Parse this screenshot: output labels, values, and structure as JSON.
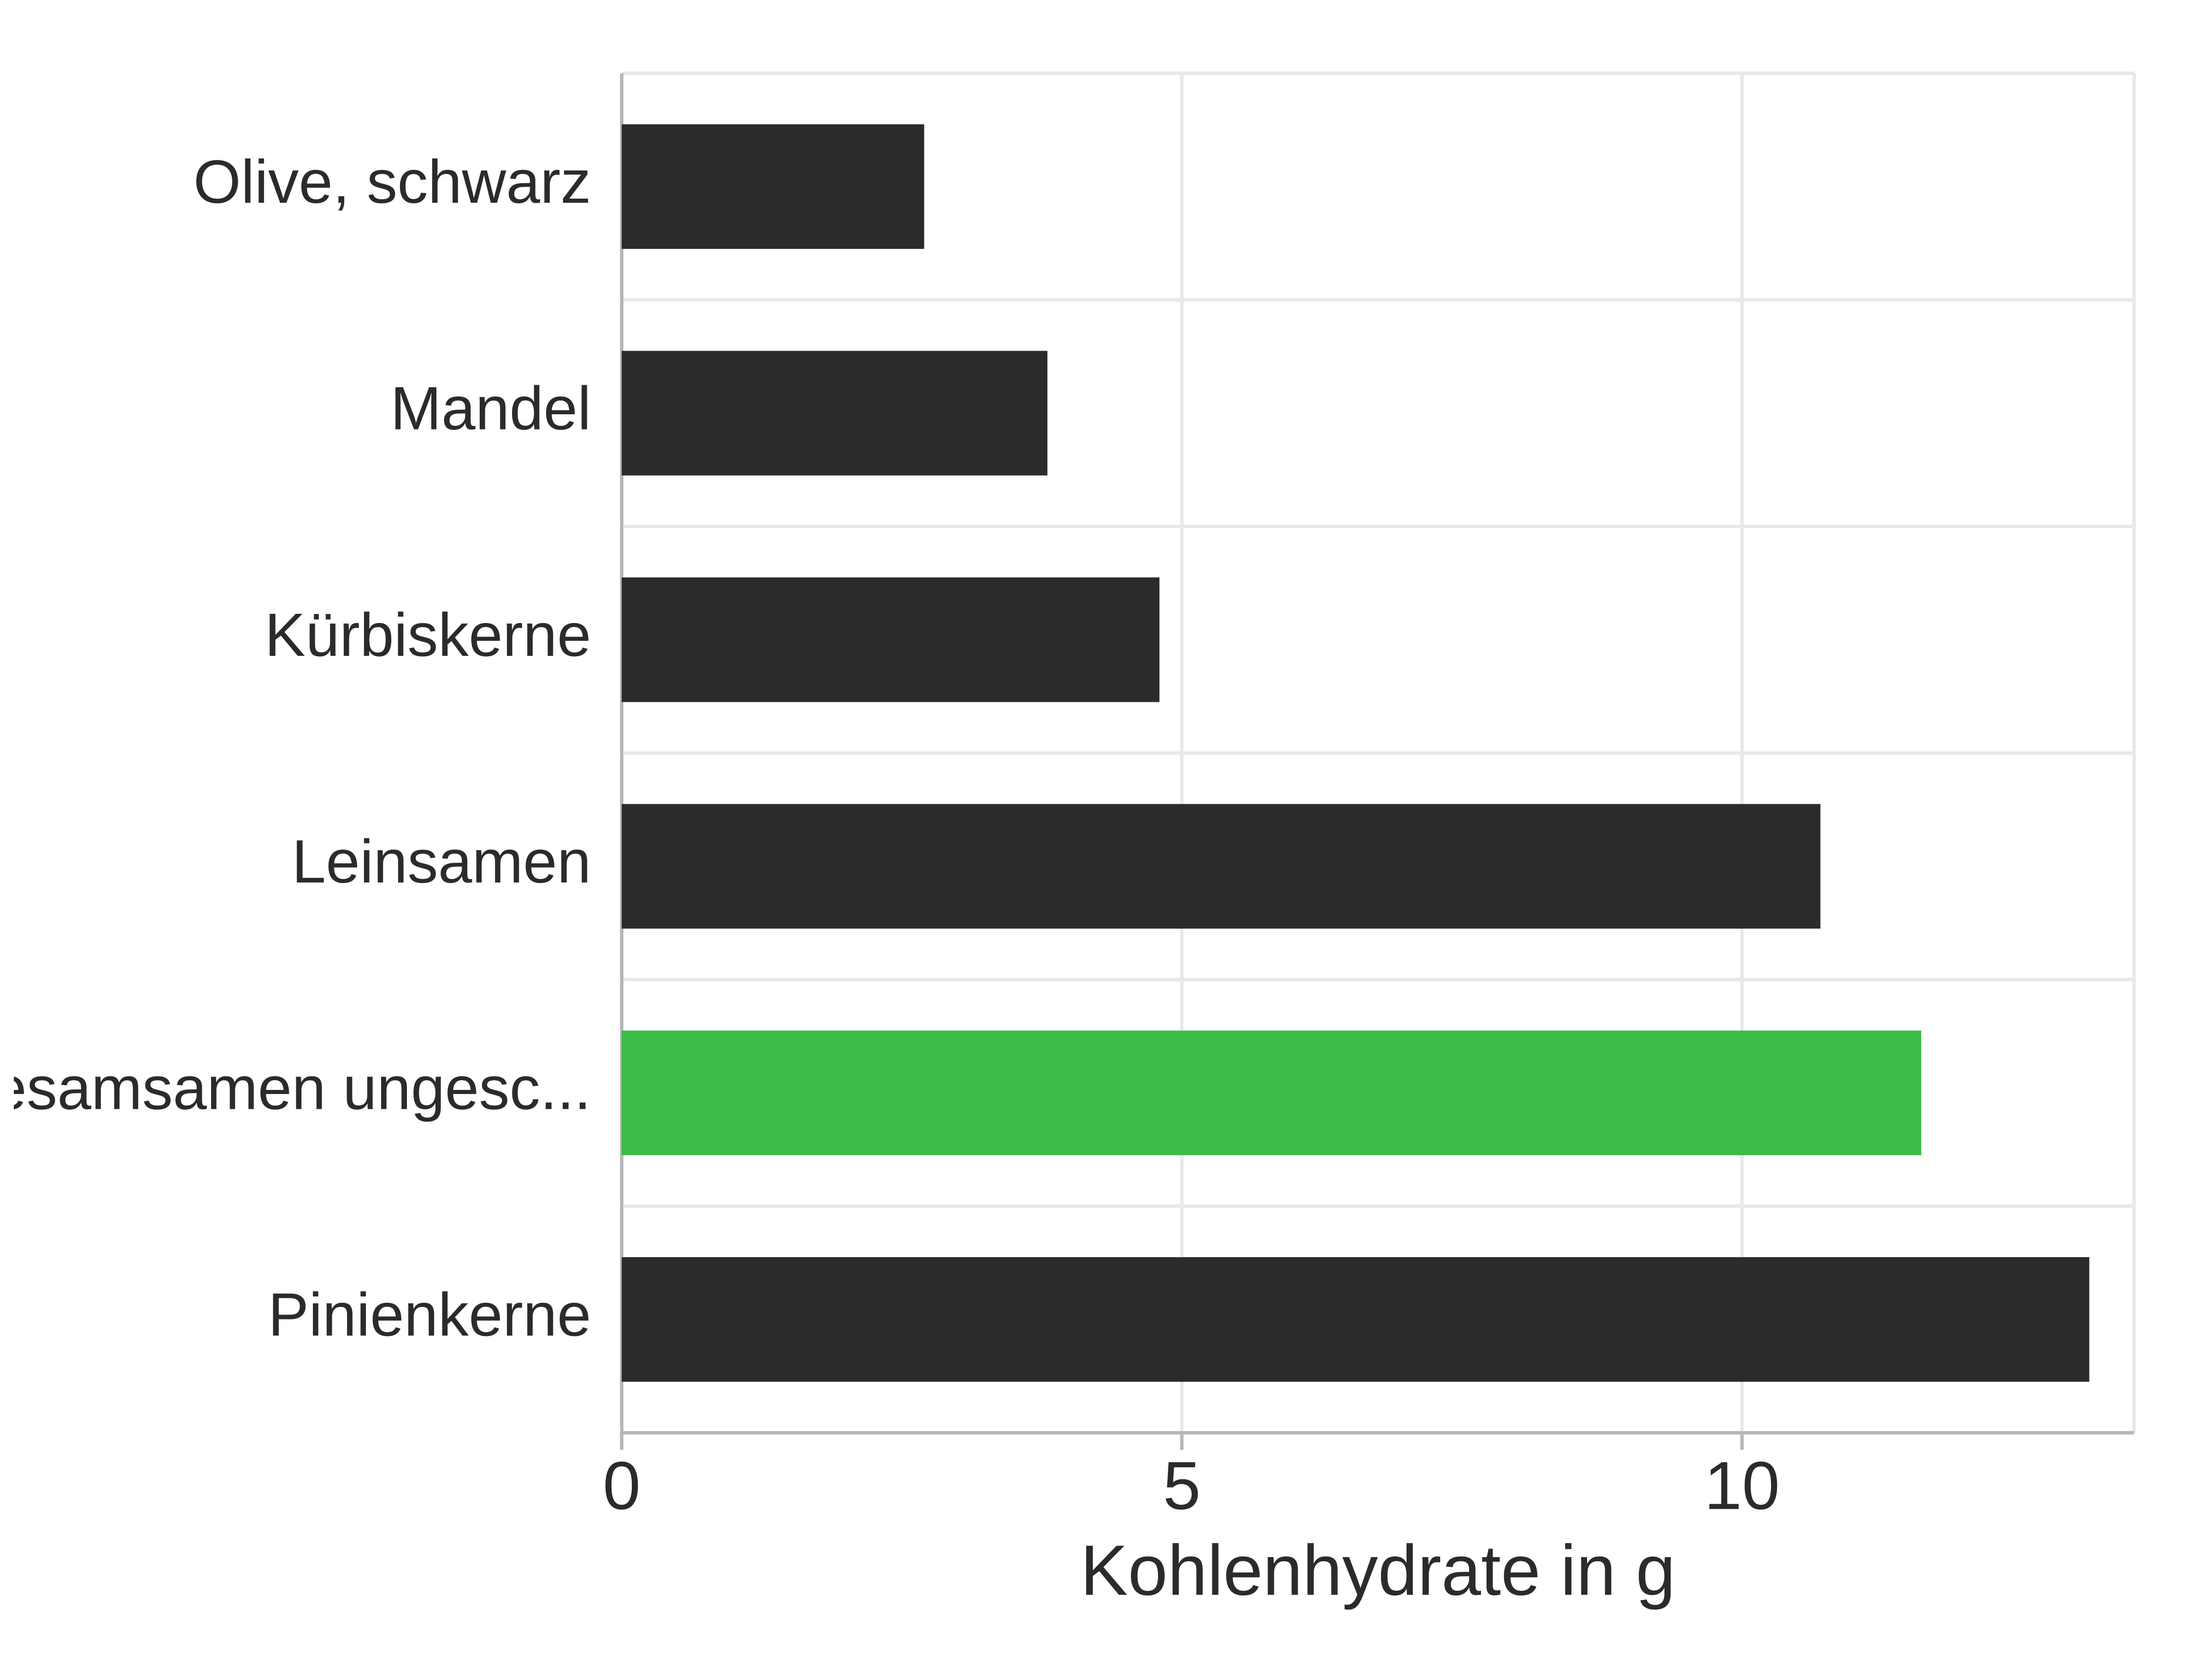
{
  "chart": {
    "type": "bar-horizontal",
    "categories": [
      "Olive, schwarz",
      "Mandel",
      "Kürbiskerne",
      "Leinsamen",
      "Sesamsamen ungesc...",
      "Pinienkerne"
    ],
    "values": [
      2.7,
      3.8,
      4.8,
      10.7,
      11.6,
      13.1
    ],
    "bar_colors": [
      "#2b2b2b",
      "#2b2b2b",
      "#2b2b2b",
      "#2b2b2b",
      "#3cbc49",
      "#2b2b2b"
    ],
    "x_ticks": [
      0,
      5,
      10
    ],
    "xlim": [
      0,
      13.5
    ],
    "x_axis_title": "Kohlenhydrate in g",
    "background_color": "#ffffff",
    "grid_color": "#e8e8e8",
    "axis_line_color": "#b6b6b6",
    "label_fontsize": 36,
    "tick_fontsize": 40,
    "title_fontsize": 42,
    "bar_height_ratio": 0.55
  }
}
